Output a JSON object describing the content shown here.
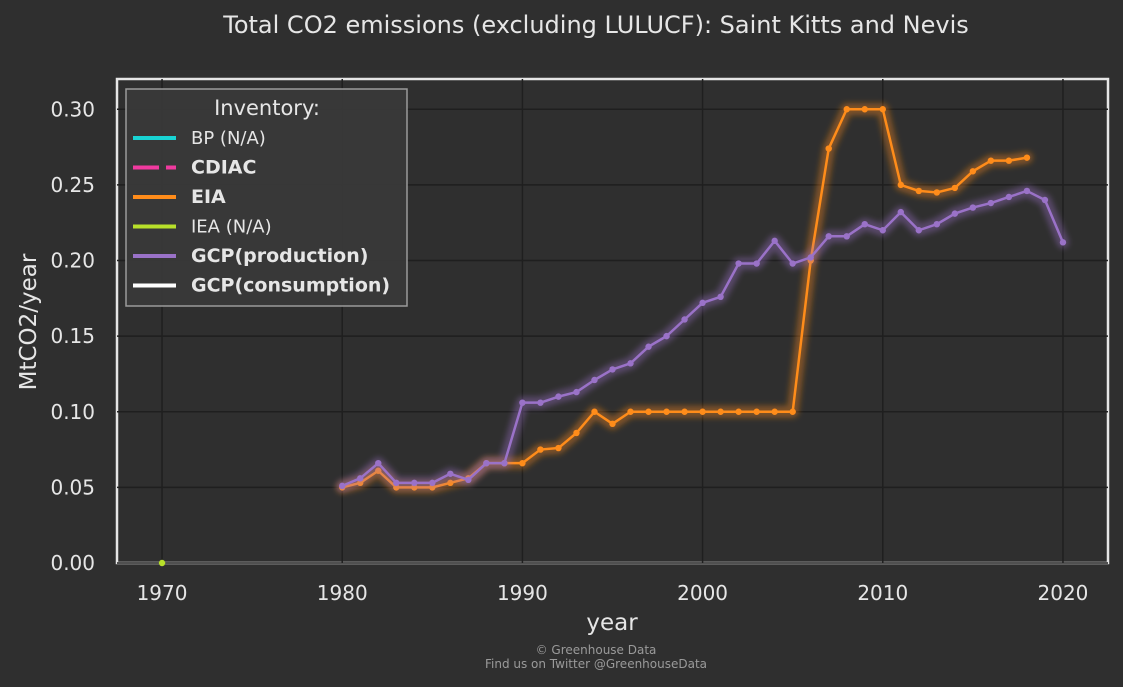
{
  "chart_data": {
    "type": "line",
    "title": "Total CO2 emissions (excluding LULUCF): Saint Kitts and Nevis",
    "xlabel": "year",
    "ylabel": "MtCO2/year",
    "xlim": [
      1967.5,
      2022.5
    ],
    "ylim": [
      0,
      0.32
    ],
    "xticks": [
      1970,
      1980,
      1990,
      2000,
      2010,
      2020
    ],
    "yticks": [
      0.0,
      0.05,
      0.1,
      0.15,
      0.2,
      0.25,
      0.3
    ],
    "grid": true,
    "legend": {
      "title": "Inventory:",
      "placement": "top-left",
      "entries": [
        {
          "label": "BP (N/A)",
          "color": "#19d3d3",
          "style": "solid",
          "bold": false
        },
        {
          "label": "CDIAC",
          "color": "#f03a9f",
          "style": "dashed",
          "bold": true
        },
        {
          "label": "EIA",
          "color": "#ff8c1a",
          "style": "solid",
          "bold": true
        },
        {
          "label": "IEA (N/A)",
          "color": "#b8e02a",
          "style": "solid",
          "bold": false
        },
        {
          "label": "GCP(production)",
          "color": "#9a72c8",
          "style": "solid",
          "bold": true
        },
        {
          "label": "GCP(consumption)",
          "color": "#ffffff",
          "style": "solid",
          "bold": true
        }
      ]
    },
    "series": [
      {
        "name": "EIA",
        "color": "#ff8c1a",
        "x": [
          1980,
          1981,
          1982,
          1983,
          1984,
          1985,
          1986,
          1987,
          1988,
          1989,
          1990,
          1991,
          1992,
          1993,
          1994,
          1995,
          1996,
          1997,
          1998,
          1999,
          2000,
          2001,
          2002,
          2003,
          2004,
          2005,
          2006,
          2007,
          2008,
          2009,
          2010,
          2011,
          2012,
          2013,
          2014,
          2015,
          2016,
          2017,
          2018
        ],
        "y": [
          0.05,
          0.053,
          0.061,
          0.05,
          0.05,
          0.05,
          0.053,
          0.056,
          0.066,
          0.066,
          0.066,
          0.075,
          0.076,
          0.086,
          0.1,
          0.092,
          0.1,
          0.1,
          0.1,
          0.1,
          0.1,
          0.1,
          0.1,
          0.1,
          0.1,
          0.1,
          0.2,
          0.274,
          0.3,
          0.3,
          0.3,
          0.25,
          0.246,
          0.245,
          0.248,
          0.259,
          0.266,
          0.266,
          0.268
        ]
      },
      {
        "name": "GCP(production)",
        "color": "#9a72c8",
        "x": [
          1980,
          1981,
          1982,
          1983,
          1984,
          1985,
          1986,
          1987,
          1988,
          1989,
          1990,
          1991,
          1992,
          1993,
          1994,
          1995,
          1996,
          1997,
          1998,
          1999,
          2000,
          2001,
          2002,
          2003,
          2004,
          2005,
          2006,
          2007,
          2008,
          2009,
          2010,
          2011,
          2012,
          2013,
          2014,
          2015,
          2016,
          2017,
          2018,
          2019,
          2020
        ],
        "y": [
          0.051,
          0.056,
          0.066,
          0.053,
          0.053,
          0.053,
          0.059,
          0.055,
          0.066,
          0.066,
          0.106,
          0.106,
          0.11,
          0.113,
          0.121,
          0.128,
          0.132,
          0.143,
          0.15,
          0.161,
          0.172,
          0.176,
          0.198,
          0.198,
          0.213,
          0.198,
          0.202,
          0.216,
          0.216,
          0.224,
          0.22,
          0.232,
          0.22,
          0.224,
          0.231,
          0.235,
          0.238,
          0.242,
          0.246,
          0.24,
          0.212
        ]
      },
      {
        "name": "IEA (N/A)",
        "color": "#b8e02a",
        "x": [
          1970
        ],
        "y": [
          0.0
        ]
      }
    ]
  },
  "footer": {
    "line1": "© Greenhouse Data",
    "line2": "Find us on Twitter @GreenhouseData"
  }
}
